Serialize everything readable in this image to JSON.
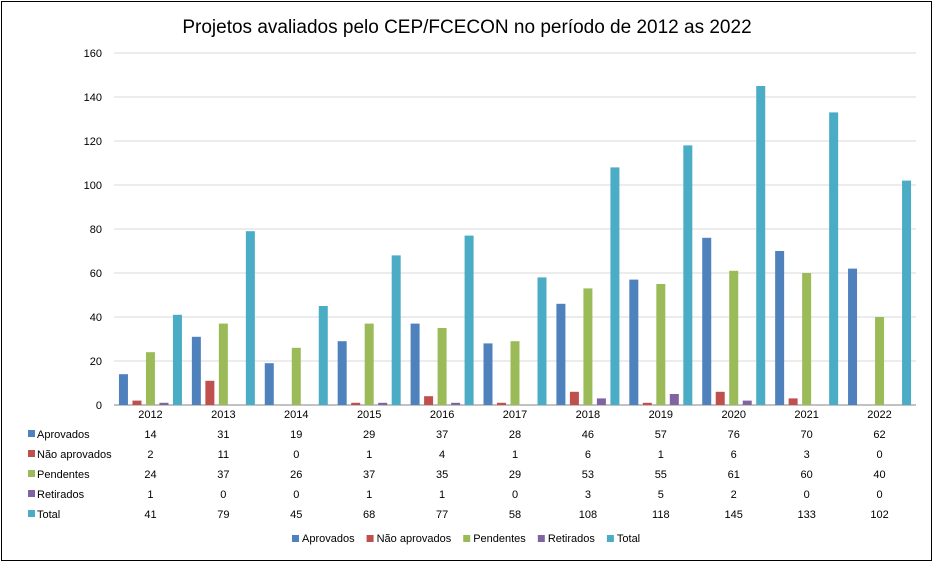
{
  "chart_data": {
    "type": "bar",
    "title": "Projetos avaliados pelo CEP/FCECON no período de 2012 as 2022",
    "categories": [
      "2012",
      "2013",
      "2014",
      "2015",
      "2016",
      "2017",
      "2018",
      "2019",
      "2020",
      "2021",
      "2022"
    ],
    "ylim": [
      0,
      160
    ],
    "yticks": [
      0,
      20,
      40,
      60,
      80,
      100,
      120,
      140,
      160
    ],
    "grid": true,
    "legend_position": "bottom",
    "data_table": true,
    "series": [
      {
        "name": "Aprovados",
        "color": "#4F81BD",
        "values": [
          14,
          31,
          19,
          29,
          37,
          28,
          46,
          57,
          76,
          70,
          62
        ]
      },
      {
        "name": "Não aprovados",
        "color": "#C0504D",
        "values": [
          2,
          11,
          0,
          1,
          4,
          1,
          6,
          1,
          6,
          3,
          0
        ]
      },
      {
        "name": "Pendentes",
        "color": "#9BBB59",
        "values": [
          24,
          37,
          26,
          37,
          35,
          29,
          53,
          55,
          61,
          60,
          40
        ]
      },
      {
        "name": "Retirados",
        "color": "#8064A2",
        "values": [
          1,
          0,
          0,
          1,
          1,
          0,
          3,
          5,
          2,
          0,
          0
        ]
      },
      {
        "name": "Total",
        "color": "#4BACC6",
        "values": [
          41,
          79,
          45,
          68,
          77,
          58,
          108,
          118,
          145,
          133,
          102
        ]
      }
    ]
  }
}
